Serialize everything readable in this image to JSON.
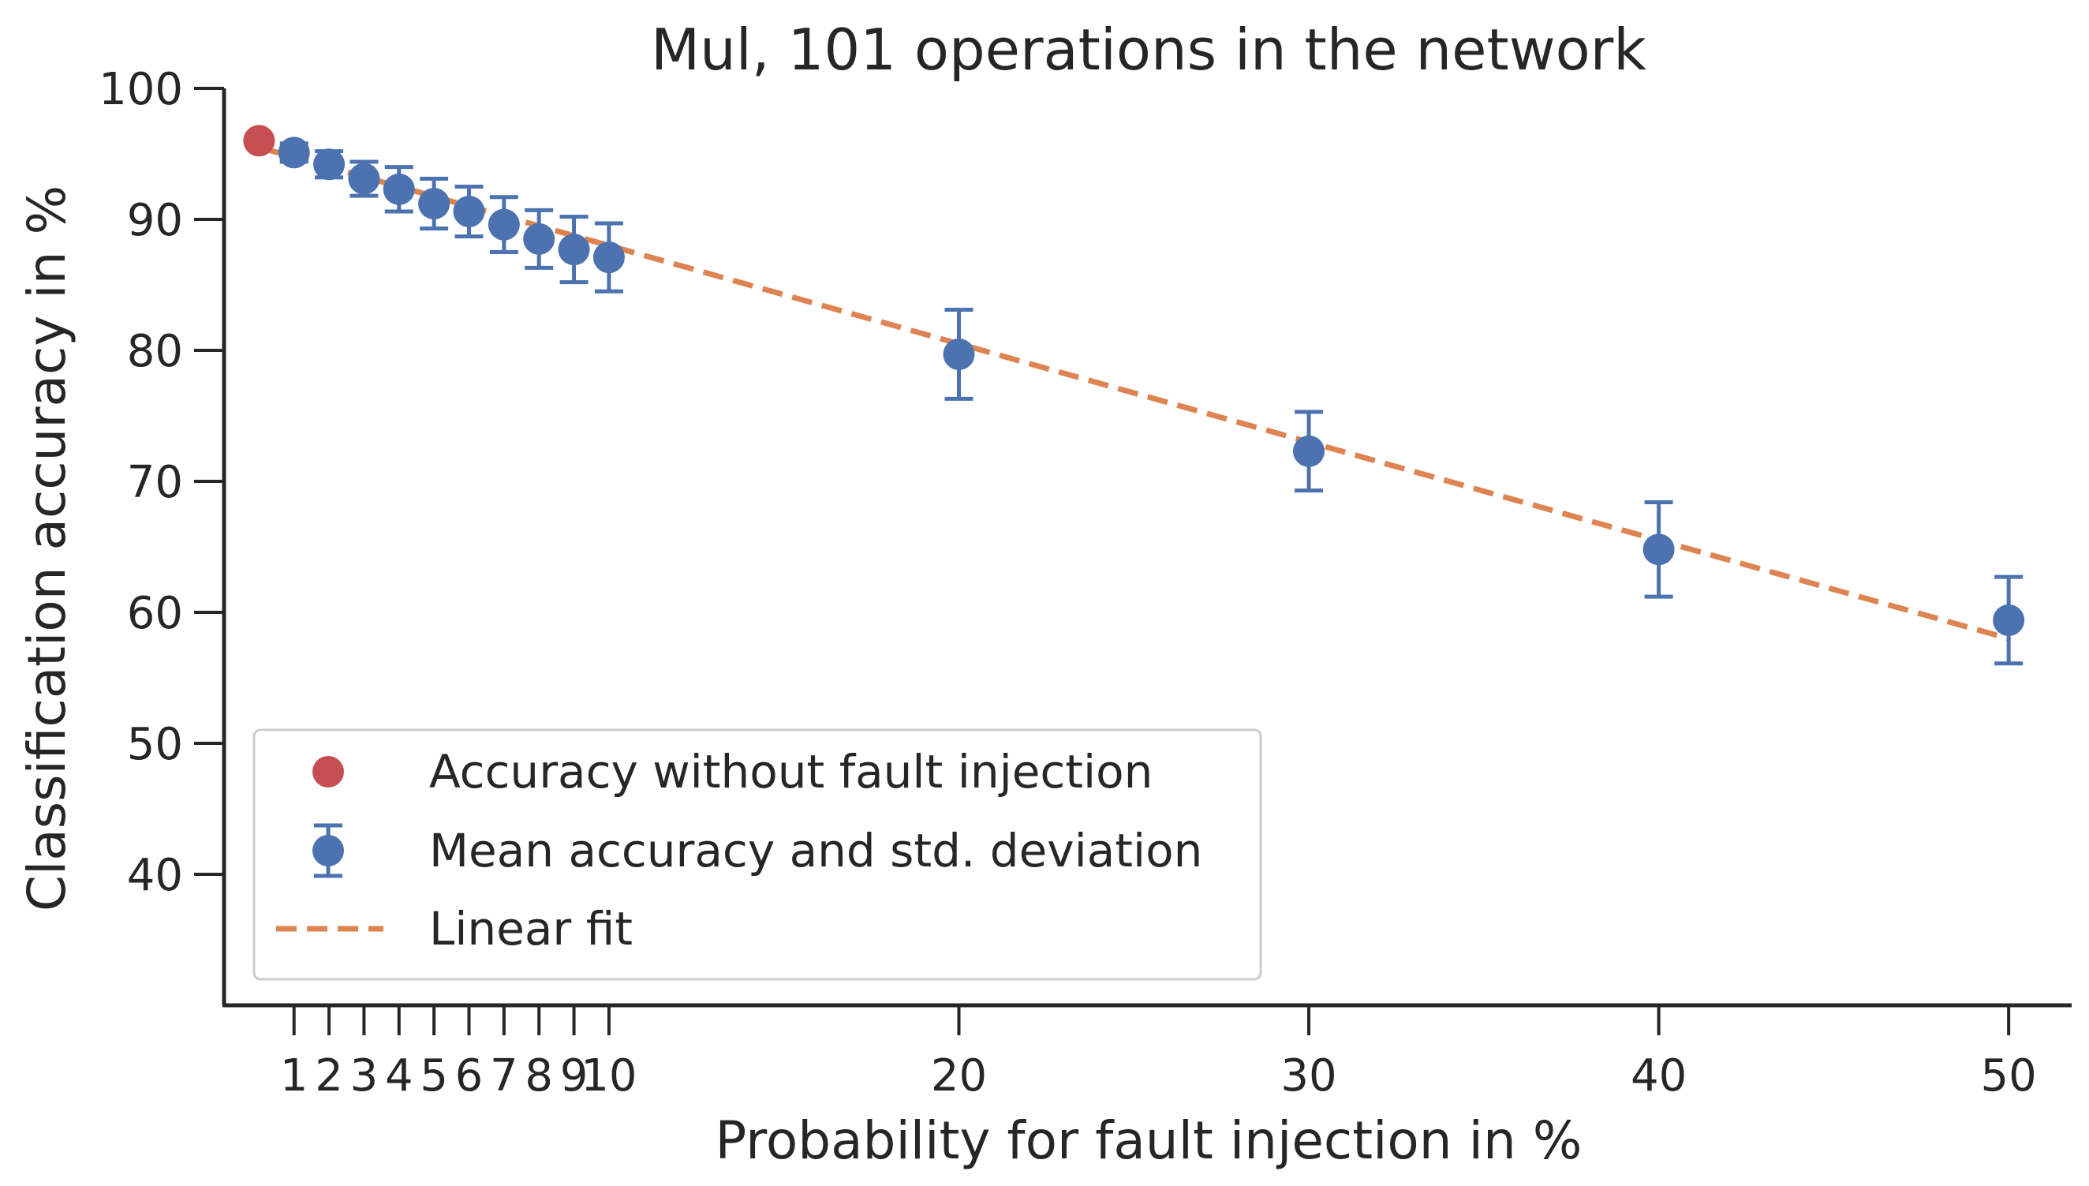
{
  "chart_data": {
    "type": "scatter",
    "title": "Mul, 101 operations in the network",
    "xlabel": "Probability for fault injection in %",
    "ylabel": "Classification accuracy in %",
    "xlim": [
      -1,
      51.8
    ],
    "ylim": [
      30,
      100
    ],
    "x_ticks": [
      1,
      2,
      3,
      4,
      5,
      6,
      7,
      8,
      9,
      10,
      20,
      30,
      40,
      50
    ],
    "y_ticks": [
      40,
      50,
      60,
      70,
      80,
      90,
      100
    ],
    "grid": false,
    "legend_position": "lower-left",
    "colors": {
      "baseline": "#c44e52",
      "mean": "#4c72b0",
      "fit": "#dd8452",
      "axis": "#262626"
    },
    "series": [
      {
        "name": "Accuracy without fault injection",
        "kind": "point",
        "x": [
          0
        ],
        "y": [
          96.0
        ]
      },
      {
        "name": "Mean accuracy and std. deviation",
        "kind": "errorbar",
        "x": [
          1,
          2,
          3,
          4,
          5,
          6,
          7,
          8,
          9,
          10,
          20,
          30,
          40,
          50
        ],
        "y": [
          95.1,
          94.2,
          93.1,
          92.3,
          91.2,
          90.6,
          89.6,
          88.5,
          87.7,
          87.1,
          79.7,
          72.3,
          64.8,
          59.4
        ],
        "yerr": [
          0.7,
          1.0,
          1.3,
          1.7,
          1.9,
          1.9,
          2.1,
          2.2,
          2.5,
          2.6,
          3.4,
          3.0,
          3.6,
          3.3
        ]
      },
      {
        "name": "Linear fit",
        "kind": "line",
        "x": [
          0,
          50
        ],
        "y": [
          95.5,
          58.0
        ]
      }
    ]
  }
}
